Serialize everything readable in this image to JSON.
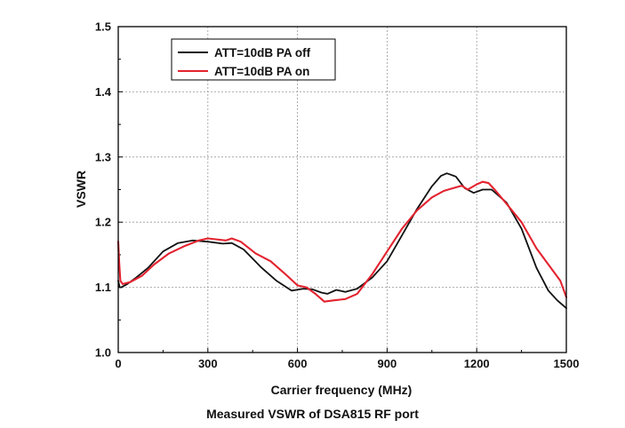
{
  "caption": "Measured VSWR of DSA815 RF port",
  "chart_data": {
    "type": "line",
    "title": "",
    "xlabel": "Carrier frequency (MHz)",
    "ylabel": "VSWR",
    "xlim": [
      0,
      1500
    ],
    "ylim": [
      1.0,
      1.5
    ],
    "xticks": [
      0,
      300,
      600,
      900,
      1200,
      1500
    ],
    "yticks": [
      1.0,
      1.1,
      1.2,
      1.3,
      1.4,
      1.5
    ],
    "xtick_labels": [
      "0",
      "300",
      "600",
      "900",
      "1200",
      "1500"
    ],
    "ytick_labels": [
      "1.0",
      "1.1",
      "1.2",
      "1.3",
      "1.4",
      "1.5"
    ],
    "grid": true,
    "legend_position": "top-left",
    "series": [
      {
        "name": "ATT=10dB PA off",
        "color": "#111111",
        "x": [
          0,
          5,
          10,
          30,
          60,
          100,
          150,
          200,
          250,
          300,
          350,
          380,
          420,
          480,
          530,
          580,
          620,
          650,
          680,
          700,
          730,
          760,
          800,
          850,
          900,
          950,
          1000,
          1050,
          1080,
          1100,
          1130,
          1160,
          1190,
          1220,
          1250,
          1300,
          1350,
          1400,
          1440,
          1470,
          1500
        ],
        "y": [
          1.11,
          1.1,
          1.1,
          1.105,
          1.115,
          1.13,
          1.155,
          1.168,
          1.172,
          1.17,
          1.167,
          1.168,
          1.158,
          1.13,
          1.11,
          1.095,
          1.098,
          1.097,
          1.092,
          1.09,
          1.096,
          1.093,
          1.098,
          1.115,
          1.14,
          1.18,
          1.22,
          1.255,
          1.271,
          1.275,
          1.27,
          1.252,
          1.245,
          1.25,
          1.25,
          1.23,
          1.19,
          1.13,
          1.095,
          1.08,
          1.068
        ]
      },
      {
        "name": "ATT=10dB PA on",
        "color": "#e3232f",
        "x": [
          0,
          3,
          7,
          15,
          40,
          80,
          120,
          170,
          220,
          270,
          300,
          340,
          360,
          380,
          410,
          460,
          510,
          560,
          600,
          630,
          660,
          690,
          720,
          760,
          800,
          850,
          900,
          950,
          1000,
          1050,
          1090,
          1120,
          1150,
          1170,
          1200,
          1220,
          1240,
          1260,
          1300,
          1350,
          1400,
          1440,
          1480,
          1500
        ],
        "y": [
          1.17,
          1.14,
          1.11,
          1.105,
          1.108,
          1.118,
          1.135,
          1.152,
          1.163,
          1.172,
          1.175,
          1.173,
          1.172,
          1.175,
          1.17,
          1.152,
          1.14,
          1.12,
          1.103,
          1.1,
          1.09,
          1.078,
          1.08,
          1.082,
          1.09,
          1.12,
          1.155,
          1.19,
          1.218,
          1.238,
          1.248,
          1.252,
          1.256,
          1.25,
          1.258,
          1.262,
          1.26,
          1.25,
          1.228,
          1.2,
          1.16,
          1.135,
          1.11,
          1.085
        ]
      }
    ]
  }
}
